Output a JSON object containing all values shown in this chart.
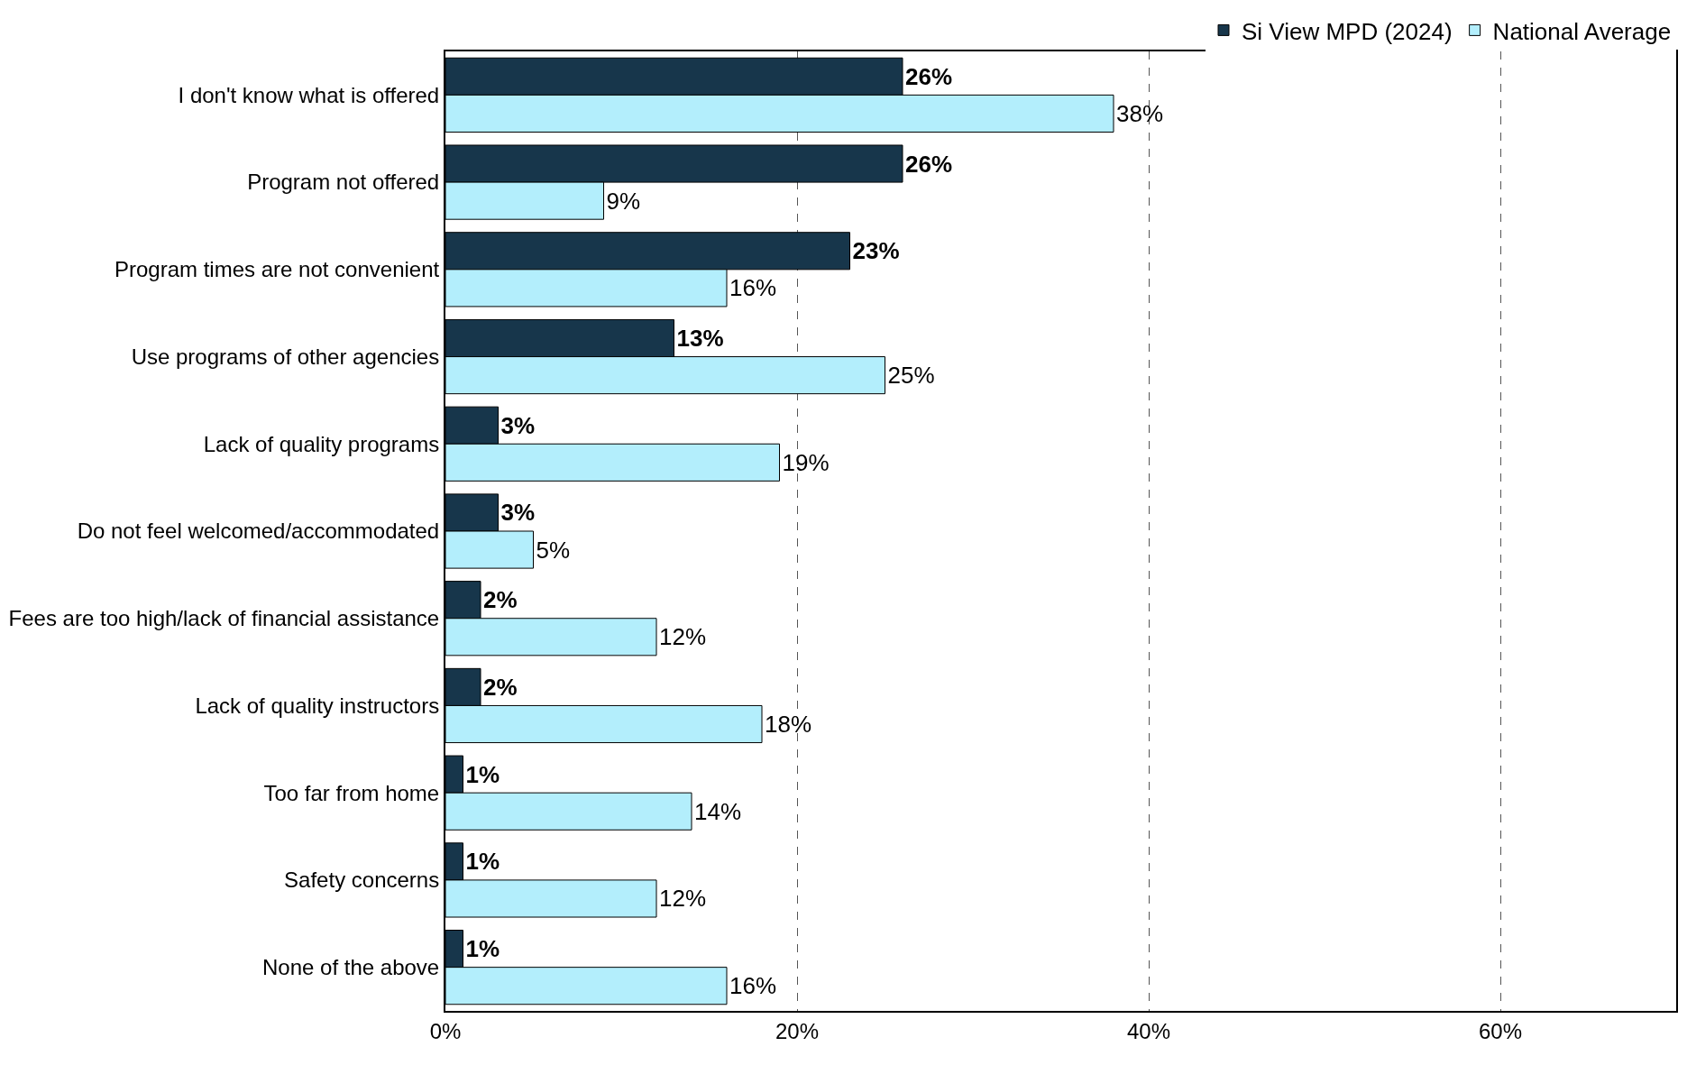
{
  "chart_data": {
    "type": "bar",
    "orientation": "horizontal",
    "categories": [
      "I don't know what is offered",
      "Program not offered",
      "Program times are not convenient",
      "Use programs of other agencies",
      "Lack of quality programs",
      "Do not feel welcomed/accommodated",
      "Fees are too high/lack of financial assistance",
      "Lack of quality instructors",
      "Too far from home",
      "Safety concerns",
      "None of the above"
    ],
    "series": [
      {
        "name": "Si View MPD (2024)",
        "color": "#17364b",
        "values": [
          26,
          26,
          23,
          13,
          3,
          3,
          2,
          2,
          1,
          1,
          1
        ],
        "value_labels": [
          "26%",
          "26%",
          "23%",
          "13%",
          "3%",
          "3%",
          "2%",
          "2%",
          "1%",
          "1%",
          "1%"
        ]
      },
      {
        "name": "National Average",
        "color": "#b3eefc",
        "values": [
          38,
          9,
          16,
          25,
          19,
          5,
          12,
          18,
          14,
          12,
          16
        ],
        "value_labels": [
          "38%",
          "9%",
          "16%",
          "25%",
          "19%",
          "5%",
          "12%",
          "18%",
          "14%",
          "12%",
          "16%"
        ]
      }
    ],
    "xlim": [
      0,
      70
    ],
    "xticks": [
      {
        "value": 0,
        "label": "0%"
      },
      {
        "value": 20,
        "label": "20%"
      },
      {
        "value": 40,
        "label": "40%"
      },
      {
        "value": 60,
        "label": "60%"
      }
    ],
    "grid": "x",
    "legend": "top right"
  }
}
